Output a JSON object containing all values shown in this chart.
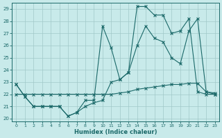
{
  "bg_color": "#c8eaea",
  "grid_color": "#a0c8c8",
  "line_color": "#1a6868",
  "xlabel": "Humidex (Indice chaleur)",
  "xlim_min": -0.5,
  "xlim_max": 23.5,
  "ylim_min": 19.75,
  "ylim_max": 29.5,
  "yticks": [
    20,
    21,
    22,
    23,
    24,
    25,
    26,
    27,
    28,
    29
  ],
  "xticks": [
    0,
    1,
    2,
    3,
    4,
    5,
    6,
    7,
    8,
    9,
    10,
    11,
    12,
    13,
    14,
    15,
    16,
    17,
    18,
    19,
    20,
    21,
    22,
    23
  ],
  "line1_x": [
    0,
    1,
    2,
    3,
    4,
    5,
    6,
    7,
    8,
    9,
    10,
    11,
    12,
    13,
    14,
    15,
    16,
    17,
    18,
    19,
    20,
    21,
    22,
    23
  ],
  "line1_y": [
    22.8,
    21.8,
    21.0,
    21.0,
    21.0,
    21.0,
    20.2,
    20.5,
    21.0,
    21.3,
    21.5,
    23.0,
    23.2,
    23.8,
    26.0,
    27.6,
    26.6,
    26.3,
    25.0,
    24.5,
    27.2,
    28.2,
    22.2,
    22.0
  ],
  "line2_x": [
    0,
    1,
    2,
    3,
    4,
    5,
    6,
    7,
    8,
    9,
    10,
    11,
    12,
    13,
    14,
    15,
    16,
    17,
    18,
    19,
    20,
    21,
    22,
    23
  ],
  "line2_y": [
    22.8,
    21.8,
    21.0,
    21.0,
    21.0,
    21.0,
    20.2,
    20.5,
    21.5,
    21.5,
    27.6,
    25.8,
    23.2,
    23.8,
    29.2,
    29.2,
    28.5,
    28.5,
    27.0,
    27.2,
    28.2,
    22.2,
    22.0,
    22.0
  ],
  "line3_x": [
    0,
    1,
    2,
    3,
    4,
    5,
    6,
    7,
    8,
    9,
    10,
    11,
    12,
    13,
    14,
    15,
    16,
    17,
    18,
    19,
    20,
    21,
    22,
    23
  ],
  "line3_y": [
    22.0,
    22.0,
    22.0,
    22.0,
    22.0,
    22.0,
    22.0,
    22.0,
    22.0,
    22.0,
    22.0,
    22.0,
    22.1,
    22.2,
    22.4,
    22.5,
    22.6,
    22.7,
    22.8,
    22.8,
    22.9,
    22.9,
    22.2,
    22.1
  ]
}
